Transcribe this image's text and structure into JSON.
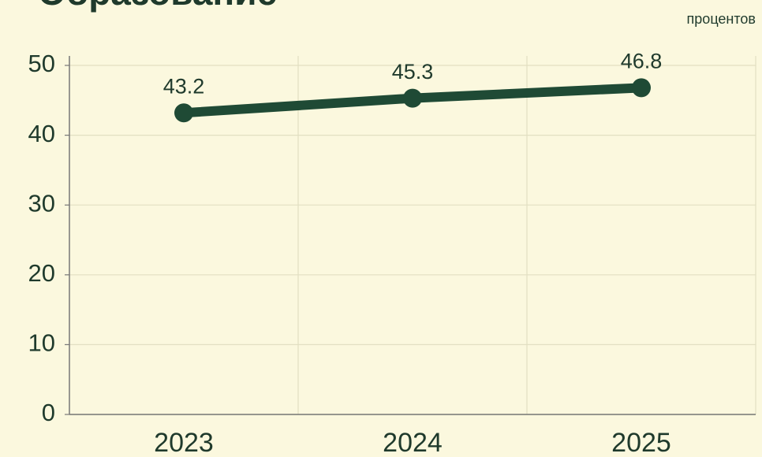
{
  "chart_data": {
    "type": "line",
    "title": "Образование",
    "unit": "процентов",
    "categories": [
      "2023",
      "2024",
      "2025"
    ],
    "series": [
      {
        "name": "Образование",
        "color": "#1f4a35",
        "values": [
          43.2,
          45.3,
          46.8
        ]
      }
    ],
    "ylim": [
      0,
      50
    ],
    "yticks": [
      0,
      10,
      20,
      30,
      40,
      50
    ],
    "grid": true
  }
}
